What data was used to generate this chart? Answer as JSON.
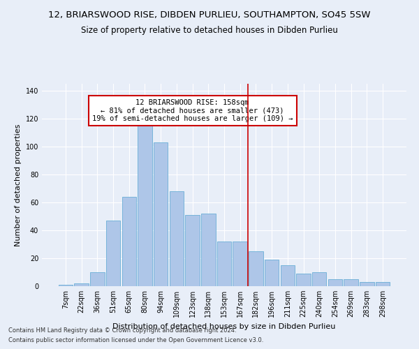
{
  "title": "12, BRIARSWOOD RISE, DIBDEN PURLIEU, SOUTHAMPTON, SO45 5SW",
  "subtitle": "Size of property relative to detached houses in Dibden Purlieu",
  "xlabel": "Distribution of detached houses by size in Dibden Purlieu",
  "ylabel": "Number of detached properties",
  "footnote1": "Contains HM Land Registry data © Crown copyright and database right 2024.",
  "footnote2": "Contains public sector information licensed under the Open Government Licence v3.0.",
  "annotation_line1": "12 BRIARSWOOD RISE: 158sqm",
  "annotation_line2": "← 81% of detached houses are smaller (473)",
  "annotation_line3": "19% of semi-detached houses are larger (109) →",
  "categories": [
    "7sqm",
    "22sqm",
    "36sqm",
    "51sqm",
    "65sqm",
    "80sqm",
    "94sqm",
    "109sqm",
    "123sqm",
    "138sqm",
    "153sqm",
    "167sqm",
    "182sqm",
    "196sqm",
    "211sqm",
    "225sqm",
    "240sqm",
    "254sqm",
    "269sqm",
    "283sqm",
    "298sqm"
  ],
  "values": [
    1,
    2,
    10,
    47,
    64,
    118,
    103,
    68,
    51,
    52,
    32,
    32,
    25,
    19,
    15,
    9,
    10,
    5,
    5,
    3,
    3
  ],
  "bar_color": "#aec6e8",
  "bar_edge_color": "#6aaed6",
  "vline_color": "#cc0000",
  "vline_x": 11.5,
  "annotation_box_color": "#cc0000",
  "background_color": "#e8eef8",
  "grid_color": "#ffffff",
  "ylim": [
    0,
    145
  ],
  "title_fontsize": 9.5,
  "subtitle_fontsize": 8.5,
  "ylabel_fontsize": 8,
  "xlabel_fontsize": 8,
  "tick_fontsize": 7,
  "footnote_fontsize": 6,
  "annot_fontsize": 7.5
}
